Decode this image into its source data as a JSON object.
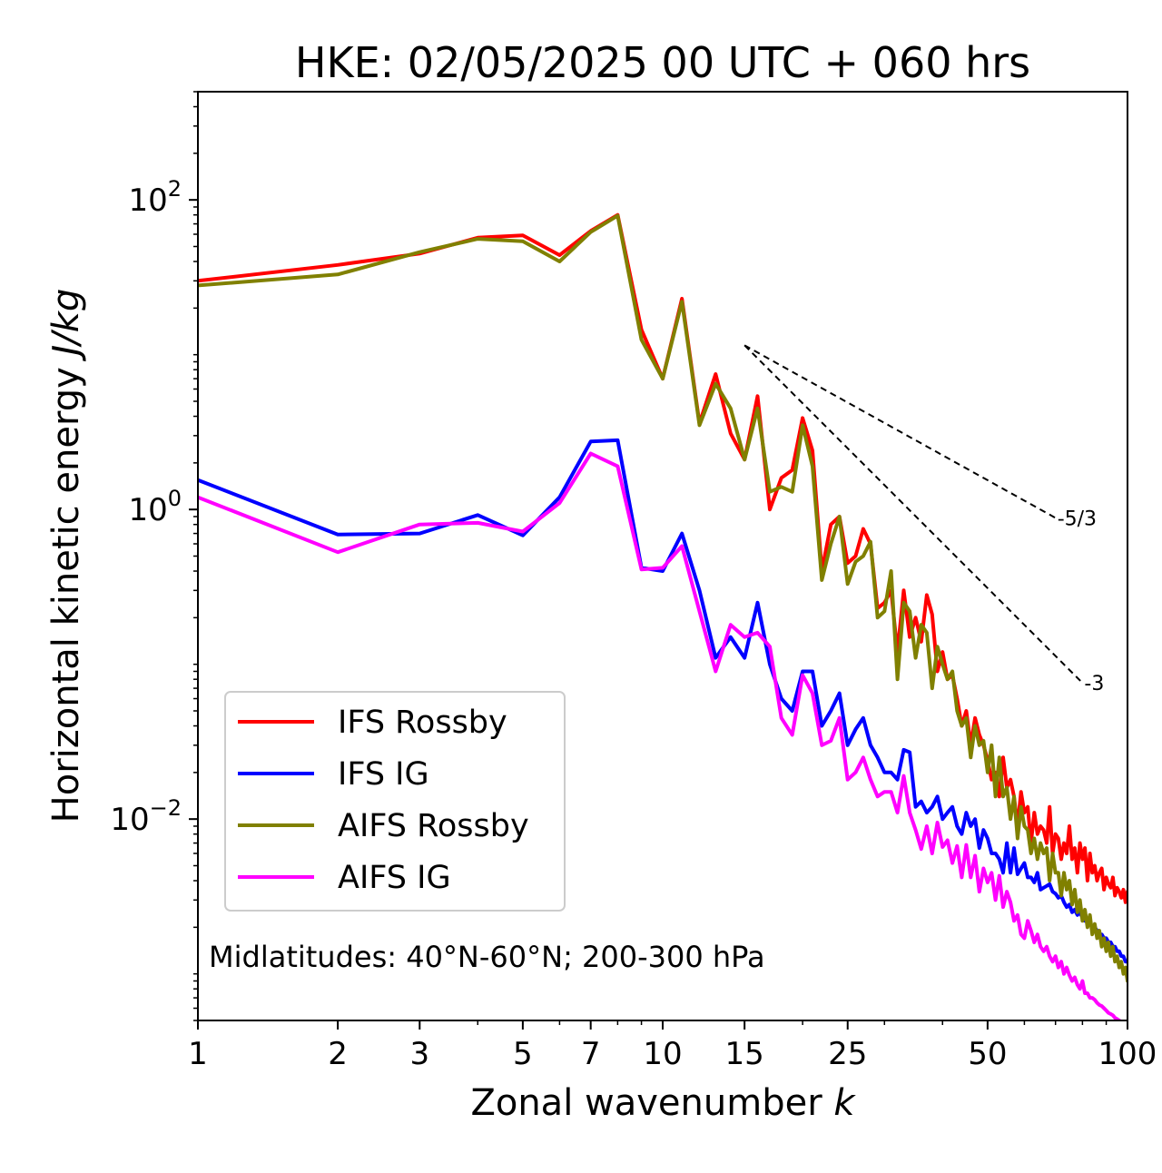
{
  "chart_data": {
    "type": "line",
    "title": "HKE: 02/05/2025 00 UTC + 060 hrs",
    "xlabel": "Zonal wavenumber",
    "xlabel_symbol": "k",
    "ylabel": "Horizontal kinetic energy",
    "ylabel_units": "J/kg",
    "xscale": "log",
    "yscale": "log",
    "xlim": [
      1,
      100
    ],
    "ylim": [
      0.0005,
      500
    ],
    "x_ticks": [
      1,
      2,
      3,
      5,
      7,
      10,
      15,
      25,
      50,
      100
    ],
    "y_ticks": [
      {
        "value": 0.01,
        "base": "10",
        "exp": "−2"
      },
      {
        "value": 1,
        "base": "10",
        "exp": "0"
      },
      {
        "value": 100,
        "base": "10",
        "exp": "2"
      }
    ],
    "grid": false,
    "legend_position": "lower-left",
    "annotation": "Midlatitudes: 40°N-60°N; 200-300 hPa",
    "reference_slopes": [
      {
        "label": "-5/3",
        "x_start": 15,
        "x_end": 70,
        "y_start": 11.5
      },
      {
        "label": "-3",
        "x_start": 15,
        "x_end": 80,
        "y_start": 11.5
      }
    ],
    "series": [
      {
        "name": "IFS Rossby",
        "color": "#ff0000",
        "x": [
          1,
          2,
          3,
          4,
          5,
          6,
          7,
          8,
          9,
          10,
          11,
          12,
          13,
          14,
          15,
          16,
          17,
          18,
          19,
          20,
          21,
          22,
          23,
          24,
          25,
          26,
          27,
          28,
          29,
          30,
          31,
          32,
          33,
          34,
          35,
          36,
          37,
          38,
          39,
          40,
          41,
          42,
          43,
          44,
          45,
          46,
          47,
          48,
          49,
          50,
          51,
          52,
          53,
          54,
          55,
          56,
          57,
          58,
          59,
          60,
          61,
          62,
          63,
          64,
          65,
          66,
          67,
          68,
          69,
          70,
          71,
          72,
          73,
          74,
          75,
          76,
          77,
          78,
          79,
          80,
          81,
          82,
          83,
          84,
          85,
          86,
          87,
          88,
          89,
          90,
          91,
          92,
          93,
          94,
          95,
          96,
          97,
          98,
          99,
          100
        ],
        "y": [
          30,
          38,
          45,
          57,
          59,
          44,
          63,
          80,
          14.5,
          7,
          23,
          3.6,
          7.5,
          3.1,
          2.1,
          5.4,
          1.0,
          1.6,
          1.8,
          3.9,
          2.4,
          0.4,
          0.8,
          0.9,
          0.45,
          0.5,
          0.75,
          0.6,
          0.23,
          0.25,
          0.3,
          0.12,
          0.3,
          0.15,
          0.2,
          0.14,
          0.28,
          0.21,
          0.09,
          0.12,
          0.08,
          0.085,
          0.06,
          0.04,
          0.05,
          0.03,
          0.045,
          0.035,
          0.03,
          0.024,
          0.018,
          0.02,
          0.014,
          0.025,
          0.016,
          0.018,
          0.014,
          0.009,
          0.015,
          0.011,
          0.012,
          0.007,
          0.011,
          0.008,
          0.009,
          0.0085,
          0.007,
          0.012,
          0.006,
          0.008,
          0.0075,
          0.0055,
          0.007,
          0.006,
          0.009,
          0.0055,
          0.0065,
          0.0045,
          0.007,
          0.0055,
          0.0065,
          0.004,
          0.006,
          0.0045,
          0.005,
          0.004,
          0.0045,
          0.0048,
          0.0035,
          0.0042,
          0.0038,
          0.0036,
          0.0042,
          0.0032,
          0.0036,
          0.0034,
          0.0031,
          0.0035,
          0.0029,
          0.0034
        ]
      },
      {
        "name": "IFS IG",
        "color": "#0000ff",
        "x": [
          1,
          2,
          3,
          4,
          5,
          6,
          7,
          8,
          9,
          10,
          11,
          12,
          13,
          14,
          15,
          16,
          17,
          18,
          19,
          20,
          21,
          22,
          23,
          24,
          25,
          26,
          27,
          28,
          29,
          30,
          31,
          32,
          33,
          34,
          35,
          36,
          37,
          38,
          39,
          40,
          41,
          42,
          43,
          44,
          45,
          46,
          47,
          48,
          49,
          50,
          51,
          52,
          53,
          54,
          55,
          56,
          57,
          58,
          59,
          60,
          61,
          62,
          63,
          64,
          65,
          66,
          67,
          68,
          69,
          70,
          71,
          72,
          73,
          74,
          75,
          76,
          77,
          78,
          79,
          80,
          81,
          82,
          83,
          84,
          85,
          86,
          87,
          88,
          89,
          90,
          91,
          92,
          93,
          94,
          95,
          96,
          97,
          98,
          99,
          100
        ],
        "y": [
          1.55,
          0.69,
          0.7,
          0.92,
          0.68,
          1.2,
          2.75,
          2.8,
          0.42,
          0.4,
          0.7,
          0.3,
          0.11,
          0.15,
          0.11,
          0.25,
          0.1,
          0.06,
          0.05,
          0.09,
          0.09,
          0.04,
          0.05,
          0.065,
          0.03,
          0.038,
          0.045,
          0.03,
          0.025,
          0.02,
          0.02,
          0.018,
          0.028,
          0.027,
          0.012,
          0.013,
          0.011,
          0.012,
          0.014,
          0.01,
          0.011,
          0.012,
          0.009,
          0.008,
          0.011,
          0.009,
          0.01,
          0.0065,
          0.0085,
          0.0075,
          0.006,
          0.006,
          0.0055,
          0.0045,
          0.007,
          0.0045,
          0.0065,
          0.0044,
          0.0048,
          0.0052,
          0.0042,
          0.0042,
          0.0039,
          0.0045,
          0.0035,
          0.0036,
          0.0037,
          0.0038,
          0.0034,
          0.0033,
          0.0031,
          0.0032,
          0.0029,
          0.0027,
          0.0028,
          0.0025,
          0.0026,
          0.0024,
          0.0025,
          0.0023,
          0.0022,
          0.0022,
          0.0021,
          0.002,
          0.002,
          0.0019,
          0.0018,
          0.0018,
          0.0017,
          0.0017,
          0.0016,
          0.0016,
          0.0015,
          0.0015,
          0.0014,
          0.0014,
          0.0013,
          0.0013,
          0.0012,
          0.0012
        ]
      },
      {
        "name": "AIFS Rossby",
        "color": "#808000",
        "x": [
          1,
          2,
          3,
          4,
          5,
          6,
          7,
          8,
          9,
          10,
          11,
          12,
          13,
          14,
          15,
          16,
          17,
          18,
          19,
          20,
          21,
          22,
          23,
          24,
          25,
          26,
          27,
          28,
          29,
          30,
          31,
          32,
          33,
          34,
          35,
          36,
          37,
          38,
          39,
          40,
          41,
          42,
          43,
          44,
          45,
          46,
          47,
          48,
          49,
          50,
          51,
          52,
          53,
          54,
          55,
          56,
          57,
          58,
          59,
          60,
          61,
          62,
          63,
          64,
          65,
          66,
          67,
          68,
          69,
          70,
          71,
          72,
          73,
          74,
          75,
          76,
          77,
          78,
          79,
          80,
          81,
          82,
          83,
          84,
          85,
          86,
          87,
          88,
          89,
          90,
          91,
          92,
          93,
          94,
          95,
          96,
          97,
          98,
          99,
          100
        ],
        "y": [
          28,
          33,
          46,
          56,
          54,
          40,
          62,
          79,
          12.5,
          7,
          22,
          3.5,
          6.5,
          4.5,
          2.1,
          4.5,
          1.3,
          1.4,
          1.3,
          3.5,
          1.9,
          0.35,
          0.6,
          0.9,
          0.33,
          0.46,
          0.5,
          0.62,
          0.2,
          0.22,
          0.4,
          0.08,
          0.25,
          0.22,
          0.11,
          0.18,
          0.16,
          0.07,
          0.13,
          0.1,
          0.08,
          0.09,
          0.05,
          0.04,
          0.045,
          0.025,
          0.04,
          0.03,
          0.032,
          0.02,
          0.03,
          0.014,
          0.025,
          0.014,
          0.016,
          0.01,
          0.014,
          0.0075,
          0.012,
          0.009,
          0.0085,
          0.006,
          0.0075,
          0.0055,
          0.007,
          0.006,
          0.0065,
          0.004,
          0.006,
          0.0045,
          0.0045,
          0.0032,
          0.0045,
          0.0035,
          0.004,
          0.0028,
          0.0035,
          0.0025,
          0.003,
          0.0022,
          0.0026,
          0.002,
          0.0024,
          0.0018,
          0.0021,
          0.0017,
          0.0019,
          0.0015,
          0.0017,
          0.0014,
          0.0016,
          0.0013,
          0.0015,
          0.0012,
          0.0013,
          0.0011,
          0.0012,
          0.001,
          0.0011,
          0.0009
        ]
      },
      {
        "name": "AIFS IG",
        "color": "#ff00ff",
        "x": [
          1,
          2,
          3,
          4,
          5,
          6,
          7,
          8,
          9,
          10,
          11,
          12,
          13,
          14,
          15,
          16,
          17,
          18,
          19,
          20,
          21,
          22,
          23,
          24,
          25,
          26,
          27,
          28,
          29,
          30,
          31,
          32,
          33,
          34,
          35,
          36,
          37,
          38,
          39,
          40,
          41,
          42,
          43,
          44,
          45,
          46,
          47,
          48,
          49,
          50,
          51,
          52,
          53,
          54,
          55,
          56,
          57,
          58,
          59,
          60,
          61,
          62,
          63,
          64,
          65,
          66,
          67,
          68,
          69,
          70,
          71,
          72,
          73,
          74,
          75,
          76,
          77,
          78,
          79,
          80,
          81,
          82,
          83,
          84,
          85,
          86,
          87,
          88,
          89,
          90,
          91,
          92,
          93,
          94,
          95,
          96,
          97,
          98,
          99,
          100
        ],
        "y": [
          1.2,
          0.53,
          0.8,
          0.82,
          0.72,
          1.1,
          2.3,
          1.9,
          0.41,
          0.42,
          0.58,
          0.22,
          0.09,
          0.18,
          0.15,
          0.16,
          0.13,
          0.045,
          0.035,
          0.085,
          0.065,
          0.03,
          0.032,
          0.045,
          0.018,
          0.02,
          0.025,
          0.018,
          0.014,
          0.015,
          0.015,
          0.011,
          0.019,
          0.011,
          0.0085,
          0.0064,
          0.009,
          0.006,
          0.0095,
          0.0066,
          0.0073,
          0.0052,
          0.0067,
          0.0042,
          0.0068,
          0.0042,
          0.0058,
          0.0034,
          0.0048,
          0.0039,
          0.0045,
          0.003,
          0.0043,
          0.0027,
          0.0034,
          0.0029,
          0.0022,
          0.0024,
          0.0018,
          0.0017,
          0.0022,
          0.0019,
          0.0016,
          0.0018,
          0.0015,
          0.0014,
          0.0015,
          0.0013,
          0.0012,
          0.0013,
          0.0011,
          0.0012,
          0.001,
          0.0011,
          0.00098,
          0.0009,
          0.00095,
          0.00085,
          0.0008,
          0.0009,
          0.00075,
          0.00075,
          0.0007,
          0.0007,
          0.00068,
          0.00065,
          0.00063,
          0.00062,
          0.0006,
          0.00058,
          0.00056,
          0.00055,
          0.00054,
          0.00052,
          0.00051,
          0.0005,
          0.00049,
          0.00048,
          0.00047,
          0.00046
        ]
      }
    ]
  }
}
